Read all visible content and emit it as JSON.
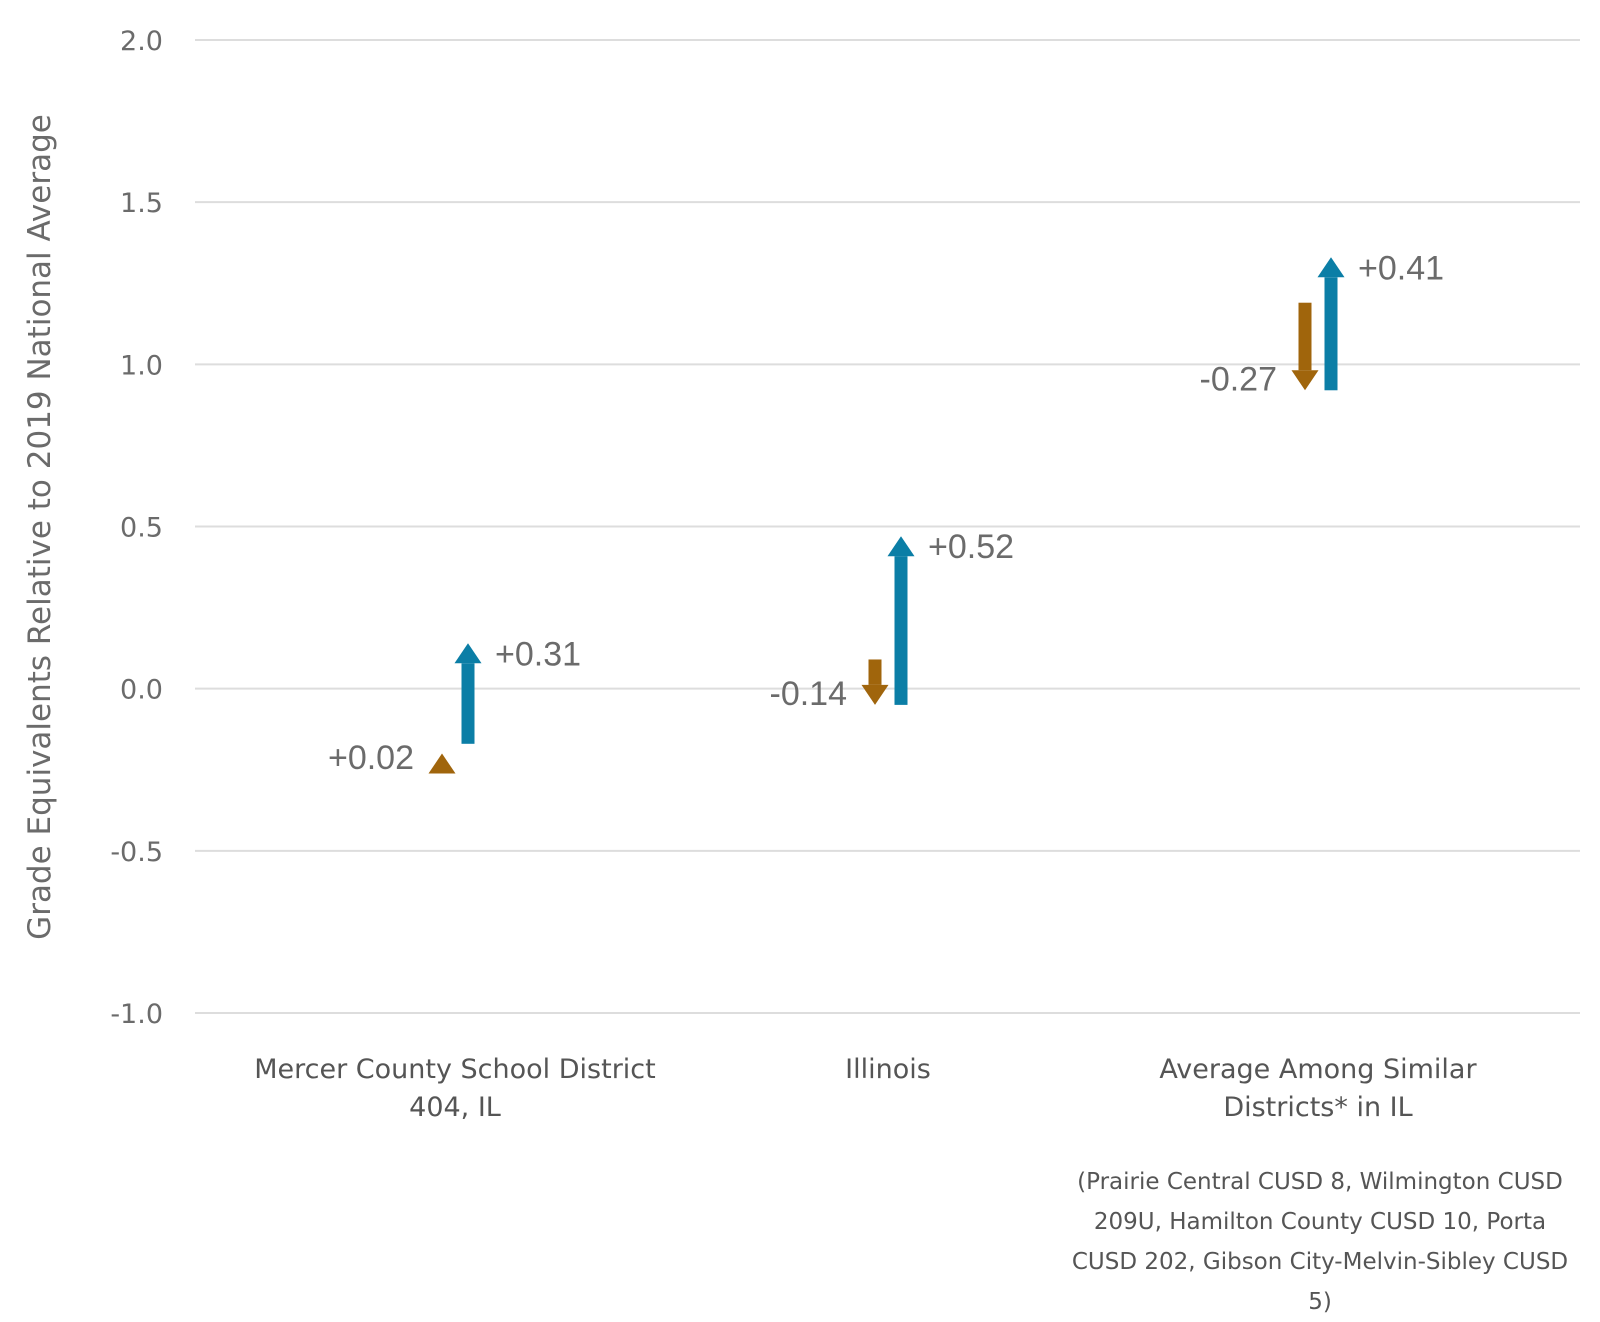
{
  "chart_data": {
    "type": "arrow",
    "title": "",
    "ylabel": "Grade Equivalents Relative to 2019 National Average",
    "xlabel": "",
    "ylim": [
      -1.0,
      2.0
    ],
    "yticks": [
      2.0,
      1.5,
      1.0,
      0.5,
      0.0,
      -0.5,
      -1.0
    ],
    "ytick_labels": [
      "2.0",
      "1.5",
      "1.0",
      "0.5",
      "0.0",
      "-0.5",
      "-1.0"
    ],
    "grid": true,
    "colors": {
      "orange": "#a0650c",
      "blue": "#0b7ea6",
      "grid": "#dddddd"
    },
    "categories": [
      {
        "lines": [
          "Mercer County School District",
          "404, IL"
        ]
      },
      {
        "lines": [
          "Illinois"
        ]
      },
      {
        "lines": [
          "Average Among Similar",
          "Districts* in IL"
        ]
      }
    ],
    "arrows": [
      [
        {
          "color": "orange",
          "start": -0.22,
          "end": -0.2,
          "label": "+0.02"
        },
        {
          "color": "blue",
          "start": -0.17,
          "end": 0.14,
          "label": "+0.31"
        }
      ],
      [
        {
          "color": "orange",
          "start": 0.09,
          "end": -0.05,
          "label": "-0.14"
        },
        {
          "color": "blue",
          "start": -0.05,
          "end": 0.47,
          "label": "+0.52"
        }
      ],
      [
        {
          "color": "orange",
          "start": 1.19,
          "end": 0.92,
          "label": "-0.27"
        },
        {
          "color": "blue",
          "start": 0.92,
          "end": 1.33,
          "label": "+0.41"
        }
      ]
    ],
    "footnote_lines": [
      "(Prairie Central CUSD 8, Wilmington CUSD",
      "209U, Hamilton County CUSD 10, Porta",
      "CUSD 202, Gibson City-Melvin-Sibley CUSD",
      "5)"
    ]
  }
}
